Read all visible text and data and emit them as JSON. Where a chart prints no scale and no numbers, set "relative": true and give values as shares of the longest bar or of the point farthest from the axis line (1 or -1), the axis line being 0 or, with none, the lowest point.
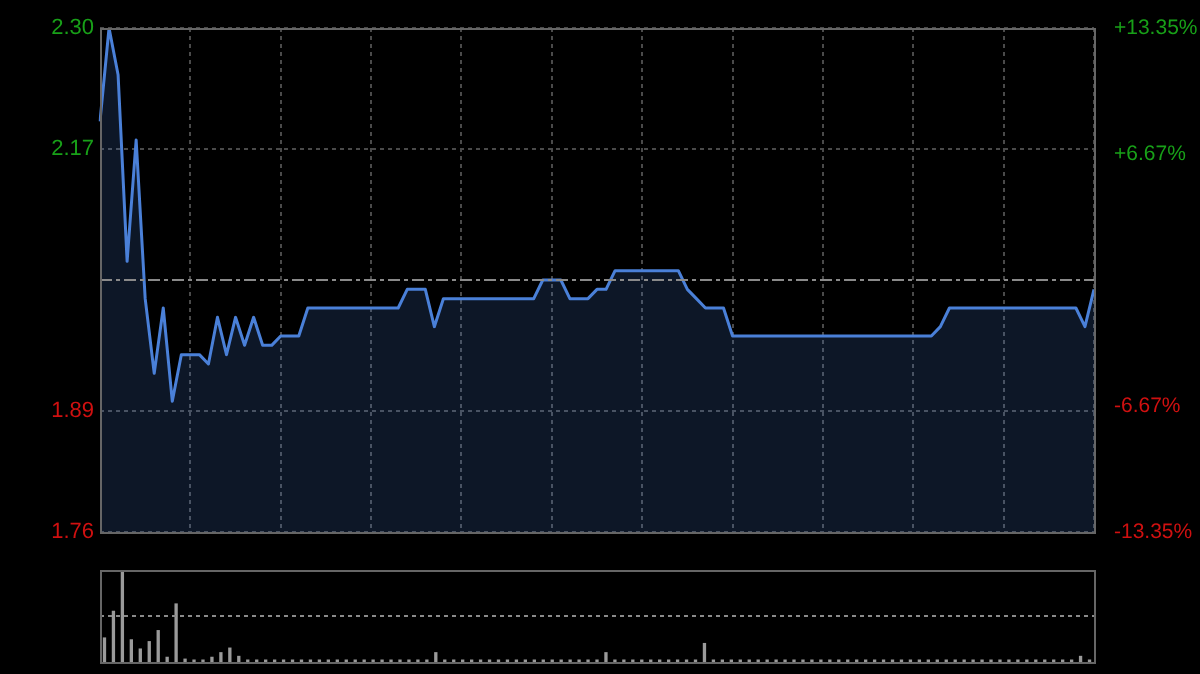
{
  "chart_data": [
    {
      "type": "area",
      "categories": [
        null,
        null,
        null,
        null,
        null,
        null,
        null,
        null,
        null,
        null,
        null,
        null,
        null,
        null,
        null,
        null,
        null,
        null,
        null,
        null,
        null,
        null,
        null,
        null,
        null,
        null,
        null,
        null,
        null,
        null,
        null,
        null,
        null,
        null,
        null,
        null,
        null,
        null,
        null,
        null,
        null,
        null,
        null,
        null,
        null,
        null,
        null,
        null,
        null,
        null,
        null,
        null,
        null,
        null,
        null,
        null,
        null,
        null,
        null,
        null,
        null,
        null,
        null,
        null,
        null,
        null,
        null,
        null,
        null,
        null,
        null,
        null,
        null,
        null,
        null,
        null,
        null,
        null,
        null,
        null,
        null,
        null,
        null,
        null,
        null,
        null,
        null,
        null,
        null,
        null,
        null,
        null,
        null,
        null,
        null,
        null,
        null,
        null,
        null,
        null,
        null,
        null,
        null,
        null,
        null,
        null,
        null,
        null,
        null,
        null,
        null
      ],
      "series": [
        {
          "color": "#4a80d8",
          "values": [
            2.2,
            2.3,
            2.25,
            2.05,
            2.18,
            2.01,
            1.93,
            2.0,
            1.9,
            1.95,
            1.95,
            1.95,
            1.94,
            1.99,
            1.95,
            1.99,
            1.96,
            1.99,
            1.96,
            1.96,
            1.97,
            1.97,
            1.97,
            2.0,
            2.0,
            2.0,
            2.0,
            2.0,
            2.0,
            2.0,
            2.0,
            2.0,
            2.0,
            2.0,
            2.02,
            2.02,
            2.02,
            1.98,
            2.01,
            2.01,
            2.01,
            2.01,
            2.01,
            2.01,
            2.01,
            2.01,
            2.01,
            2.01,
            2.01,
            2.03,
            2.03,
            2.03,
            2.01,
            2.01,
            2.01,
            2.02,
            2.02,
            2.04,
            2.04,
            2.04,
            2.04,
            2.04,
            2.04,
            2.04,
            2.04,
            2.02,
            2.01,
            2.0,
            2.0,
            2.0,
            1.97,
            1.97,
            1.97,
            1.97,
            1.97,
            1.97,
            1.97,
            1.97,
            1.97,
            1.97,
            1.97,
            1.97,
            1.97,
            1.97,
            1.97,
            1.97,
            1.97,
            1.97,
            1.97,
            1.97,
            1.97,
            1.97,
            1.97,
            1.98,
            2.0,
            2.0,
            2.0,
            2.0,
            2.0,
            2.0,
            2.0,
            2.0,
            2.0,
            2.0,
            2.0,
            2.0,
            2.0,
            2.0,
            2.0,
            1.98,
            2.02
          ]
        }
      ],
      "ylim": [
        1.76,
        2.3
      ],
      "yticks": [
        {
          "value": 2.3,
          "label": "2.30"
        },
        2.17,
        1.89,
        1.76
      ],
      "y2lim": [
        -13.35,
        13.35
      ],
      "y2ticks": [
        {
          "value": 13.35,
          "label": "+13.35%"
        },
        {
          "value": 6.67,
          "label": "+6.67%"
        },
        {
          "value": -6.67,
          "label": "-6.67%"
        },
        {
          "value": -13.35,
          "label": "-13.35%"
        }
      ],
      "ref_lines": [
        {
          "axis": "y",
          "value": 2.03
        }
      ],
      "grid": true
    },
    {
      "type": "bar",
      "categories": [
        null,
        null,
        null,
        null,
        null,
        null,
        null,
        null,
        null,
        null,
        null,
        null,
        null,
        null,
        null,
        null,
        null,
        null,
        null,
        null,
        null,
        null,
        null,
        null,
        null,
        null,
        null,
        null,
        null,
        null,
        null,
        null,
        null,
        null,
        null,
        null,
        null,
        null,
        null,
        null,
        null,
        null,
        null,
        null,
        null,
        null,
        null,
        null,
        null,
        null,
        null,
        null,
        null,
        null,
        null,
        null,
        null,
        null,
        null,
        null,
        null,
        null,
        null,
        null,
        null,
        null,
        null,
        null,
        null,
        null,
        null,
        null,
        null,
        null,
        null,
        null,
        null,
        null,
        null,
        null,
        null,
        null,
        null,
        null,
        null,
        null,
        null,
        null,
        null,
        null,
        null,
        null,
        null,
        null,
        null,
        null,
        null,
        null,
        null,
        null,
        null,
        null,
        null,
        null,
        null,
        null,
        null,
        null,
        null,
        null,
        null
      ],
      "values": [
        0.26,
        0.55,
        1,
        0.24,
        0.14,
        0.22,
        0.34,
        0.05,
        0.63,
        0.03,
        0.02,
        0.02,
        0.05,
        0.1,
        0.15,
        0.06,
        0.02,
        0.02,
        0.02,
        0.02,
        0.02,
        0.02,
        0.02,
        0.02,
        0.02,
        0.02,
        0.02,
        0.02,
        0.02,
        0.02,
        0.02,
        0.02,
        0.02,
        0.02,
        0.02,
        0.02,
        0.02,
        0.1,
        0.02,
        0.02,
        0.02,
        0.02,
        0.02,
        0.02,
        0.02,
        0.02,
        0.02,
        0.02,
        0.02,
        0.02,
        0.02,
        0.02,
        0.02,
        0.02,
        0.02,
        0.02,
        0.1,
        0.02,
        0.02,
        0.02,
        0.02,
        0.02,
        0.02,
        0.02,
        0.02,
        0.02,
        0.02,
        0.2,
        0.02,
        0.02,
        0.02,
        0.02,
        0.02,
        0.02,
        0.02,
        0.02,
        0.02,
        0.02,
        0.02,
        0.02,
        0.02,
        0.02,
        0.02,
        0.02,
        0.02,
        0.02,
        0.02,
        0.02,
        0.02,
        0.02,
        0.02,
        0.02,
        0.02,
        0.02,
        0.02,
        0.02,
        0.02,
        0.02,
        0.02,
        0.02,
        0.02,
        0.02,
        0.02,
        0.02,
        0.02,
        0.02,
        0.02,
        0.02,
        0.02,
        0.06,
        0.02
      ],
      "color": "#9a9a9a",
      "relative": true,
      "ref_lines": [
        {
          "axis": "y",
          "value": 0.5,
          "line_style": "dotted"
        }
      ]
    }
  ]
}
